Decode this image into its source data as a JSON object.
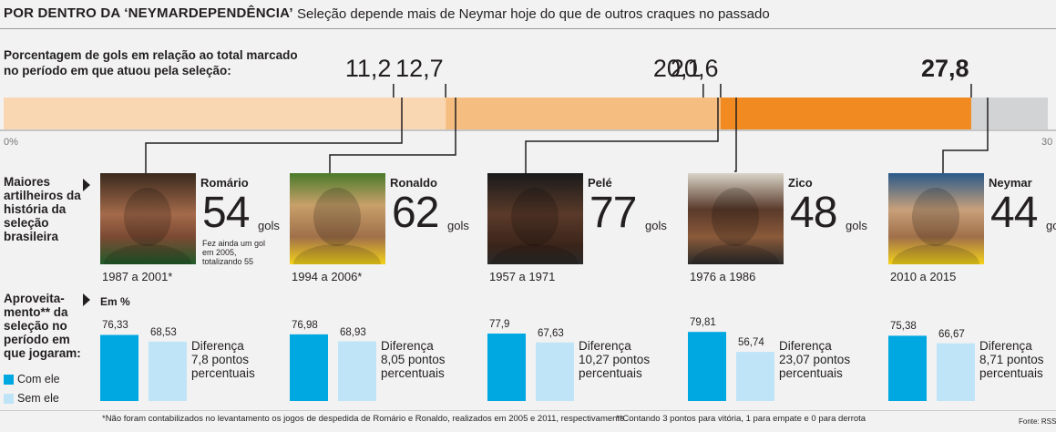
{
  "header": {
    "title": "POR DENTRO DA ‘NEYMARDEPENDÊNCIA’",
    "subtitle": "Seleção depende mais de Neymar hoje do que de outros craques no passado"
  },
  "colors": {
    "light_orange": "#fad7b3",
    "mid_orange": "#f6bd80",
    "orange": "#f08a21",
    "gray": "#d2d3d5",
    "with_him": "#00a8e1",
    "without_him": "#bfe4f7"
  },
  "chart_data": [
    {
      "type": "bar",
      "description": "Porcentagem de gols em relação ao total marcado no período em que atuou pela seleção:",
      "axis_min_label": "0%",
      "axis_max_label": "30",
      "xlim": [
        0,
        30
      ],
      "categories": [
        "Romário",
        "Ronaldo",
        "Pelé",
        "Zico",
        "Neymar"
      ],
      "values": [
        11.2,
        12.7,
        20.1,
        20.6,
        27.8
      ],
      "value_labels": [
        "11,2",
        "12,7",
        "20,1",
        "20,6",
        "27,8"
      ],
      "highlight": "Neymar"
    },
    {
      "type": "bar",
      "description": "Aproveitamento** da seleção no período em que jogaram:",
      "unit_label": "Em %",
      "ylim": [
        0,
        100
      ],
      "legend": [
        "Com ele",
        "Sem ele"
      ],
      "series": [
        {
          "name": "Com ele",
          "values": [
            76.33,
            76.98,
            77.9,
            79.81,
            75.38
          ],
          "labels": [
            "76,33",
            "76,98",
            "77,9",
            "79,81",
            "75,38"
          ]
        },
        {
          "name": "Sem ele",
          "values": [
            68.53,
            68.93,
            67.63,
            56.74,
            66.67
          ],
          "labels": [
            "68,53",
            "68,93",
            "67,63",
            "56,74",
            "66,67"
          ]
        }
      ],
      "categories": [
        "Romário",
        "Ronaldo",
        "Pelé",
        "Zico",
        "Neymar"
      ]
    }
  ],
  "players": [
    {
      "name": "Romário",
      "goals": "54",
      "goals_unit": "gols",
      "period": "1987 a 2001*",
      "note": "Fez ainda um gol em 2005, totalizando 55",
      "diff_line1": "Diferença",
      "diff_line2": "7,8 pontos",
      "diff_line3": "percentuais"
    },
    {
      "name": "Ronaldo",
      "goals": "62",
      "goals_unit": "gols",
      "period": "1994 a 2006*",
      "note": "",
      "diff_line1": "Diferença",
      "diff_line2": "8,05 pontos",
      "diff_line3": "percentuais"
    },
    {
      "name": "Pelé",
      "goals": "77",
      "goals_unit": "gols",
      "period": "1957 a 1971",
      "note": "",
      "diff_line1": "Diferença",
      "diff_line2": "10,27 pontos",
      "diff_line3": "percentuais"
    },
    {
      "name": "Zico",
      "goals": "48",
      "goals_unit": "gols",
      "period": "1976 a 1986",
      "note": "",
      "diff_line1": "Diferença",
      "diff_line2": "23,07 pontos",
      "diff_line3": "percentuais"
    },
    {
      "name": "Neymar",
      "goals": "44",
      "goals_unit": "gols",
      "period": "2010 a 2015",
      "note": "",
      "diff_line1": "Diferença",
      "diff_line2": "8,71 pontos",
      "diff_line3": "percentuais"
    }
  ],
  "sections": {
    "scorers_label": "Maiores artilheiros da história da seleção brasileira",
    "performance_label": "Aproveita-mento** da seleção no período em que jogaram:",
    "unit_label": "Em %"
  },
  "legend": {
    "with": "Com ele",
    "without": "Sem ele"
  },
  "footer": {
    "note1": "*Não foram contabilizados no levantamento os jogos de despedida de Romário e Ronaldo, realizados em 2005 e 2011, respectivamente",
    "note2": "**Contando 3 pontos para vitória, 1 para empate e 0 para derrota",
    "source": "Fonte: RSSSF"
  }
}
